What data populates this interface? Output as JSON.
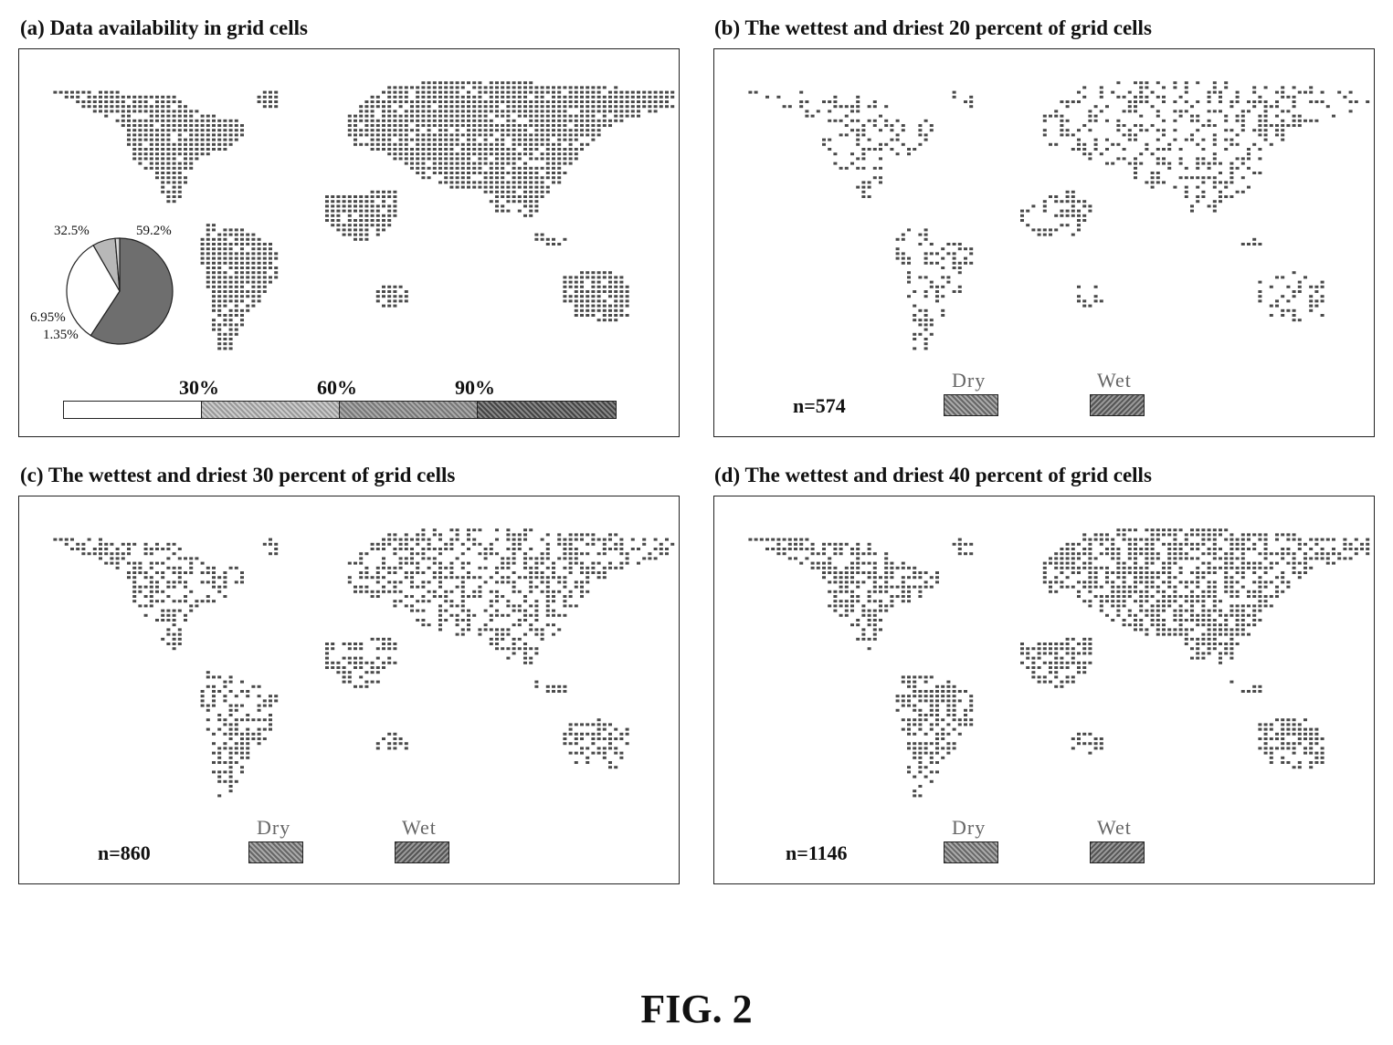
{
  "panels": [
    {
      "id": "a",
      "title": "(a) Data availability in grid cells"
    },
    {
      "id": "b",
      "title": "(b) The wettest and driest 20 percent of grid cells",
      "n_label": "n=574"
    },
    {
      "id": "c",
      "title": "(c) The wettest and driest 30 percent of grid cells",
      "n_label": "n=860"
    },
    {
      "id": "d",
      "title": "(d) The wettest and driest 40 percent of grid cells",
      "n_label": "n=1146"
    }
  ],
  "legend": {
    "dry": "Dry",
    "wet": "Wet",
    "dry_color": "#8a8a8a",
    "wet_color": "#7a7a7a"
  },
  "pie": {
    "labels": [
      "59.2%",
      "32.5%",
      "6.95%",
      "1.35%"
    ],
    "values": [
      59.2,
      32.5,
      6.95,
      1.35
    ],
    "colors": [
      "#6e6e6e",
      "#ffffff",
      "#b8b8b8",
      "#d8d8d8"
    ]
  },
  "scale": {
    "labels": [
      "30%",
      "60%",
      "90%"
    ],
    "colors": [
      "#ffffff",
      "#b0b0b0",
      "#8c8c8c",
      "#5e5e5e"
    ]
  },
  "figure_label": "FIG. 2"
}
